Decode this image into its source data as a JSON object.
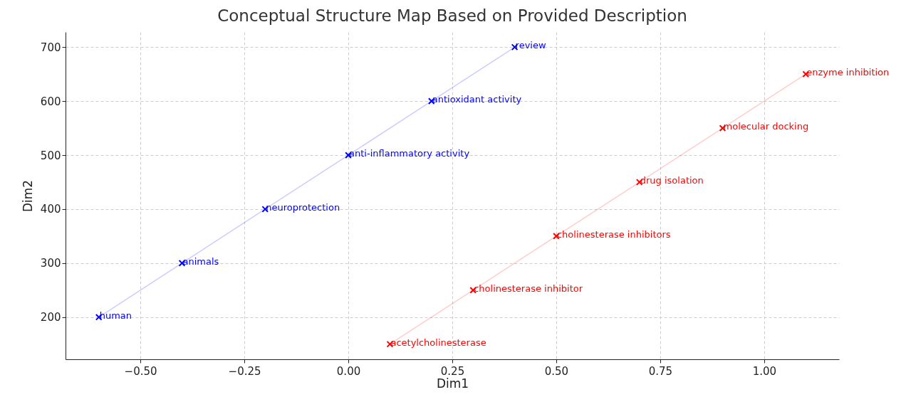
{
  "chart_data": {
    "type": "line",
    "title": "Conceptual Structure Map Based on Provided Description",
    "xlabel": "Dim1",
    "ylabel": "Dim2",
    "marker": "cross",
    "grid": true,
    "xlim": [
      -0.68,
      1.18
    ],
    "ylim": [
      122,
      728
    ],
    "xticks": [
      {
        "value": -0.5,
        "label": "−0.50"
      },
      {
        "value": -0.25,
        "label": "−0.25"
      },
      {
        "value": 0,
        "label": "0.00"
      },
      {
        "value": 0.25,
        "label": "0.25"
      },
      {
        "value": 0.5,
        "label": "0.50"
      },
      {
        "value": 0.75,
        "label": "0.75"
      },
      {
        "value": 1.0,
        "label": "1.00"
      }
    ],
    "yticks": [
      200,
      300,
      400,
      500,
      600,
      700
    ],
    "series": [
      {
        "color": "#0000ff",
        "x": [
          -0.6,
          -0.4,
          -0.2,
          0.0,
          0.2,
          0.4
        ],
        "values": [
          200,
          300,
          400,
          500,
          600,
          700
        ]
      },
      {
        "color": "#ff0000",
        "x": [
          0.1,
          0.3,
          0.5,
          0.7,
          0.9,
          1.1
        ],
        "values": [
          150,
          250,
          350,
          450,
          550,
          650
        ]
      }
    ],
    "annotations": [
      {
        "text": "human",
        "x": -0.6,
        "y": 200
      },
      {
        "text": "animals",
        "x": -0.4,
        "y": 300
      },
      {
        "text": "neuroprotection",
        "x": -0.2,
        "y": 400
      },
      {
        "text": "anti-inflammatory activity",
        "x": 0.0,
        "y": 500
      },
      {
        "text": "antioxidant activity",
        "x": 0.2,
        "y": 600
      },
      {
        "text": "review",
        "x": 0.4,
        "y": 700
      },
      {
        "text": "acetylcholinesterase",
        "x": 0.1,
        "y": 150
      },
      {
        "text": "cholinesterase inhibitor",
        "x": 0.3,
        "y": 250
      },
      {
        "text": "cholinesterase inhibitors",
        "x": 0.5,
        "y": 350
      },
      {
        "text": "drug isolation",
        "x": 0.7,
        "y": 450
      },
      {
        "text": "molecular docking",
        "x": 0.9,
        "y": 550
      },
      {
        "text": "enzyme inhibition",
        "x": 1.1,
        "y": 650
      }
    ]
  }
}
